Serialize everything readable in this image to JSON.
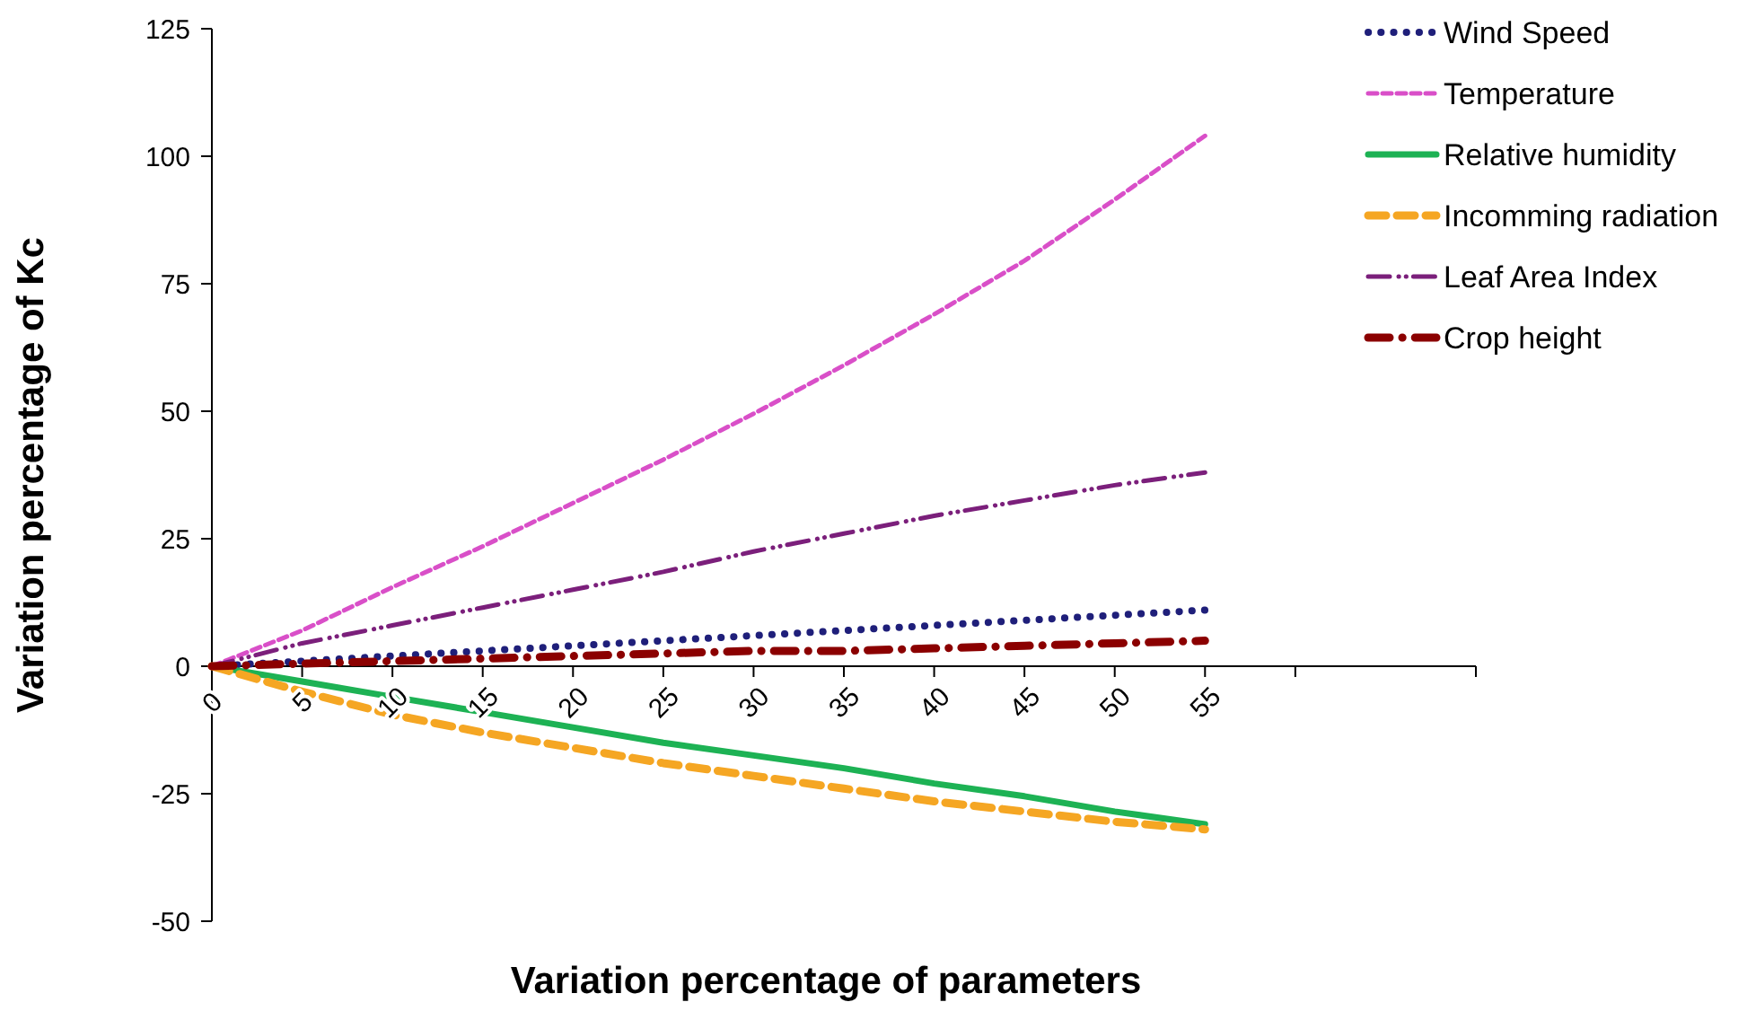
{
  "chart_data": {
    "type": "line",
    "xlabel": "Variation percentage of parameters",
    "ylabel": "Variation percentage of Kc",
    "x": [
      0,
      5,
      10,
      15,
      20,
      25,
      30,
      35,
      40,
      45,
      50,
      55
    ],
    "xlim": [
      0,
      70
    ],
    "xticks": [
      0,
      5,
      10,
      15,
      20,
      25,
      30,
      35,
      40,
      45,
      50,
      55,
      {
        "value": 60,
        "label": null
      },
      {
        "value": 70,
        "label": null
      }
    ],
    "ylim": [
      -50,
      125
    ],
    "yticks": [
      -50,
      -25,
      0,
      25,
      50,
      75,
      100,
      125
    ],
    "grid": false,
    "legend": "top right",
    "marker": "none",
    "series": [
      {
        "name": "Wind Speed",
        "color": "#1f1f7a",
        "line_style": "dotted",
        "values": [
          0,
          1,
          2,
          3,
          4,
          5,
          6,
          7,
          8,
          9,
          10,
          11
        ]
      },
      {
        "name": "Temperature",
        "color": "#d94fc8",
        "line_style": "dashed",
        "values": [
          0,
          7,
          15.5,
          23.5,
          32,
          40.5,
          49.5,
          59,
          69,
          79.5,
          91.5,
          104
        ]
      },
      {
        "name": "Relative humidity",
        "color": "#1db254",
        "line_style": "solid",
        "values": [
          0,
          -3,
          -6,
          -9,
          -12,
          -15,
          -17.5,
          -20,
          -23,
          -25.5,
          -28.5,
          -31
        ]
      },
      {
        "name": "Incomming radiation",
        "color": "#f5a623",
        "line_style": "dashed",
        "values": [
          0,
          -5,
          -9.5,
          -13,
          -16,
          -19,
          -21.5,
          -24,
          -26.5,
          -28.5,
          -30.5,
          -32
        ]
      },
      {
        "name": "Leaf Area Index",
        "color": "#7b1f7b",
        "line_style": "dashdot",
        "values": [
          0,
          4.5,
          8,
          11.5,
          15,
          18.5,
          22.5,
          26,
          29.5,
          32.5,
          35.5,
          38
        ]
      },
      {
        "name": "Crop height",
        "color": "#8b0000",
        "line_style": "dashdot",
        "values": [
          0,
          0.5,
          1,
          1.5,
          2,
          2.5,
          3,
          3,
          3.5,
          4,
          4.5,
          5
        ]
      }
    ]
  }
}
